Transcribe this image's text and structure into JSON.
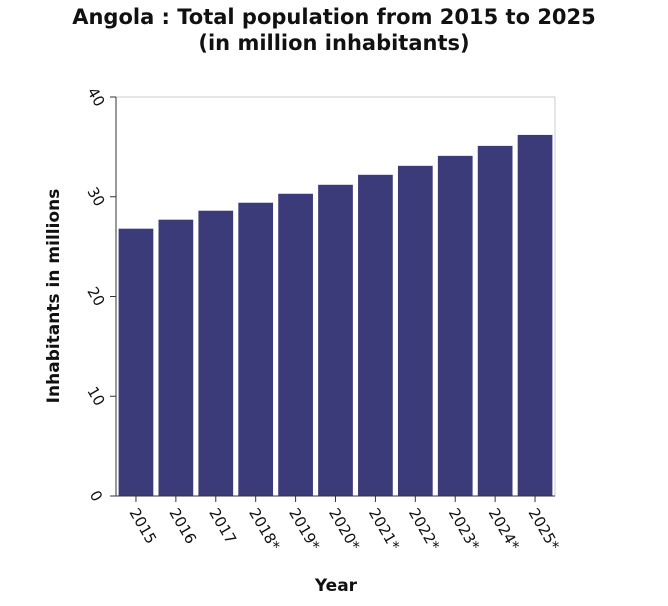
{
  "chart_data": {
    "type": "bar",
    "title_line1": "Angola : Total population from 2015 to 2025",
    "title_line2": "(in million inhabitants)",
    "xlabel": "Year",
    "ylabel": "Inhabitants in millions",
    "categories": [
      "2015",
      "2016",
      "2017",
      "2018*",
      "2019*",
      "2020*",
      "2021*",
      "2022*",
      "2023*",
      "2024*",
      "2025*"
    ],
    "values": [
      26.8,
      27.7,
      28.6,
      29.4,
      30.3,
      31.2,
      32.2,
      33.1,
      34.1,
      35.1,
      36.2
    ],
    "ylim": [
      0,
      40
    ],
    "yticks": [
      0,
      10,
      20,
      30,
      40
    ],
    "bar_color": "#3b3b7a",
    "grid": false
  }
}
